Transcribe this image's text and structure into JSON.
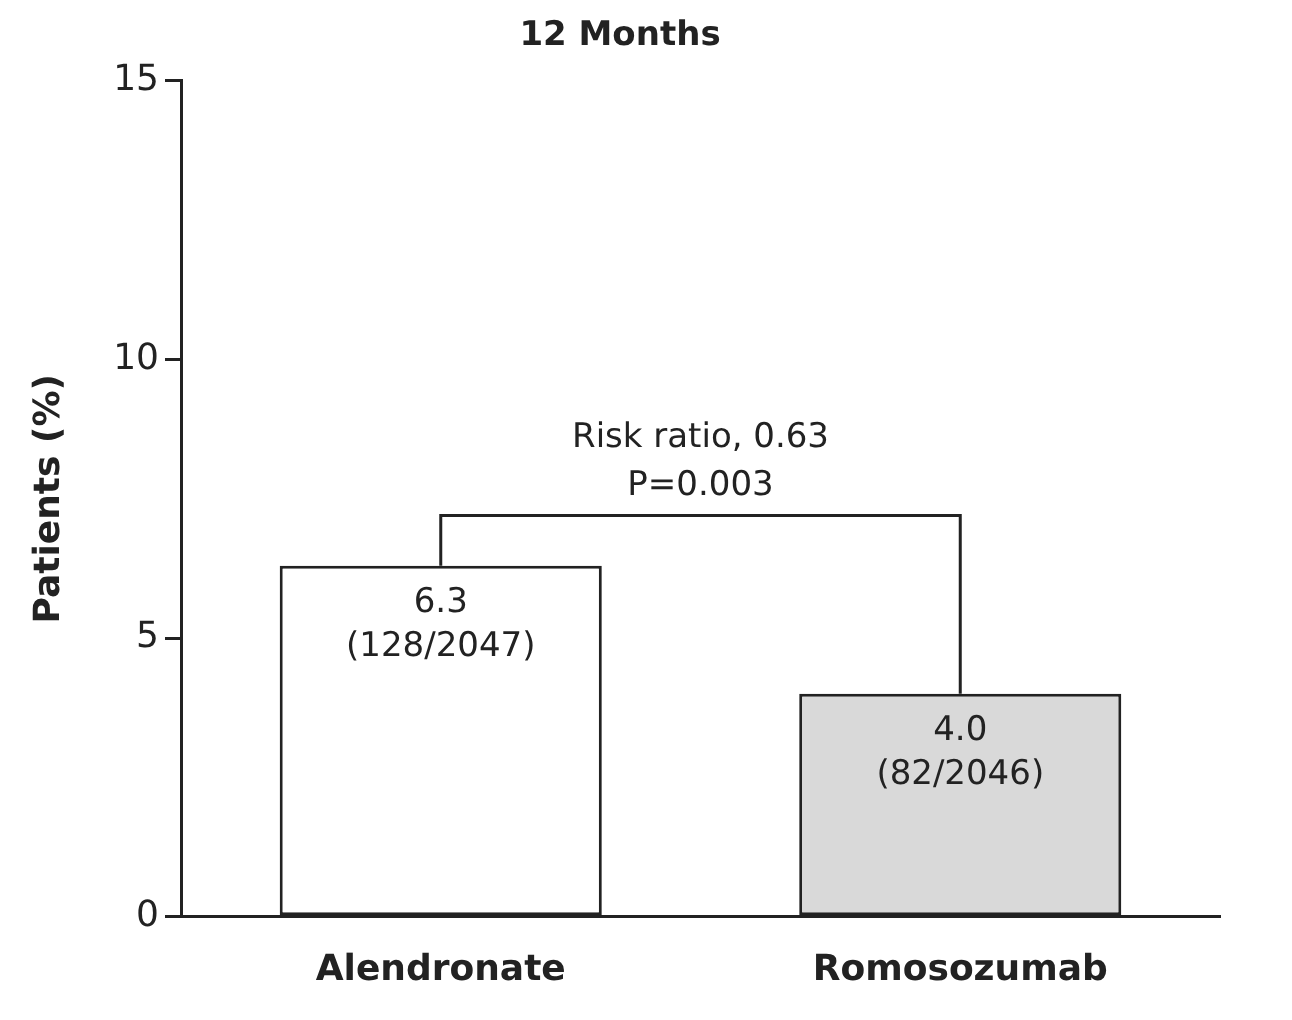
{
  "chart_data": {
    "type": "bar",
    "title": "12 Months",
    "ylabel": "Patients (%)",
    "categories": [
      "Alendronate",
      "Romosozumab"
    ],
    "values": [
      6.3,
      4.0
    ],
    "colors": [
      "#ffffff",
      "#d9d9d9"
    ],
    "value_labels": [
      "6.3\n(128/2047)",
      "4.0\n(82/2046)"
    ],
    "ylim": [
      0,
      15
    ],
    "yticks": [
      0,
      5,
      10,
      15
    ],
    "grid": false,
    "legend": false,
    "annotations": [
      "Risk ratio, 0.63\nP=0.003"
    ]
  }
}
